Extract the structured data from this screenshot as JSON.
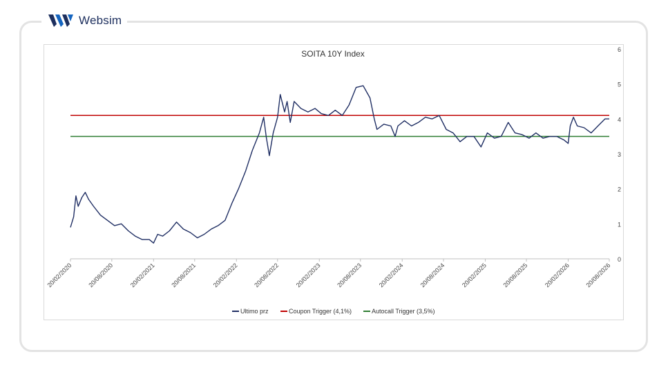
{
  "brand": {
    "name": "Websim"
  },
  "colors": {
    "series": "#1f2e63",
    "coupon": "#c00000",
    "autocall": "#2e7d32",
    "logo_blue": "#1565c0",
    "logo_dark": "#1d2f5e"
  },
  "chart_data": {
    "type": "line",
    "title": "SOITA 10Y Index",
    "xlabel": "",
    "ylabel": "",
    "y_axis_side": "right",
    "ylim": [
      0,
      6
    ],
    "yticks": [
      0,
      1,
      2,
      3,
      4,
      5,
      6
    ],
    "xlim": [
      "2020-02-20",
      "2026-08-20"
    ],
    "xtick_labels": [
      "20/02/2020",
      "20/08/2020",
      "20/02/2021",
      "20/08/2021",
      "20/02/2022",
      "20/08/2022",
      "20/02/2023",
      "20/08/2023",
      "20/02/2024",
      "20/08/2024",
      "20/02/2025",
      "20/08/2025",
      "20/02/2026",
      "20/08/2026"
    ],
    "xticks": [
      "2020-02-20",
      "2020-08-20",
      "2021-02-20",
      "2021-08-20",
      "2022-02-20",
      "2022-08-20",
      "2023-02-20",
      "2023-08-20",
      "2024-02-20",
      "2024-08-20",
      "2025-02-20",
      "2025-08-20",
      "2026-02-20",
      "2026-08-20"
    ],
    "grid": false,
    "legend": "bottom",
    "series": [
      {
        "name": "Ultimo prz",
        "kind": "line",
        "x": [
          "2020-02-20",
          "2020-03-05",
          "2020-03-15",
          "2020-03-25",
          "2020-04-10",
          "2020-04-25",
          "2020-05-10",
          "2020-06-01",
          "2020-07-01",
          "2020-08-01",
          "2020-09-01",
          "2020-10-01",
          "2020-11-01",
          "2020-12-01",
          "2021-01-01",
          "2021-02-01",
          "2021-02-20",
          "2021-03-10",
          "2021-04-01",
          "2021-05-01",
          "2021-06-01",
          "2021-07-01",
          "2021-08-01",
          "2021-09-01",
          "2021-10-01",
          "2021-11-01",
          "2021-12-01",
          "2022-01-01",
          "2022-02-01",
          "2022-03-01",
          "2022-04-01",
          "2022-05-01",
          "2022-06-01",
          "2022-06-20",
          "2022-07-01",
          "2022-07-15",
          "2022-08-01",
          "2022-08-20",
          "2022-09-01",
          "2022-09-20",
          "2022-10-01",
          "2022-10-15",
          "2022-11-01",
          "2022-12-01",
          "2023-01-01",
          "2023-02-01",
          "2023-03-01",
          "2023-04-01",
          "2023-05-01",
          "2023-06-01",
          "2023-07-01",
          "2023-08-01",
          "2023-09-01",
          "2023-10-01",
          "2023-10-20",
          "2023-11-01",
          "2023-12-01",
          "2024-01-01",
          "2024-01-20",
          "2024-02-01",
          "2024-03-01",
          "2024-04-01",
          "2024-05-01",
          "2024-06-01",
          "2024-07-01",
          "2024-08-01",
          "2024-09-01",
          "2024-10-01",
          "2024-11-01",
          "2024-12-01",
          "2025-01-01",
          "2025-02-01",
          "2025-03-01",
          "2025-04-01",
          "2025-05-01",
          "2025-06-01",
          "2025-07-01",
          "2025-08-01",
          "2025-09-01",
          "2025-10-01",
          "2025-11-01",
          "2025-12-01",
          "2026-01-01",
          "2026-02-01",
          "2026-02-20",
          "2026-03-01",
          "2026-03-15",
          "2026-04-01",
          "2026-05-01",
          "2026-06-01",
          "2026-07-01",
          "2026-08-01",
          "2026-08-20"
        ],
        "values": [
          0.9,
          1.2,
          1.8,
          1.5,
          1.75,
          1.9,
          1.7,
          1.5,
          1.25,
          1.1,
          0.95,
          1.0,
          0.8,
          0.65,
          0.55,
          0.55,
          0.45,
          0.7,
          0.65,
          0.8,
          1.05,
          0.85,
          0.75,
          0.6,
          0.7,
          0.85,
          0.95,
          1.1,
          1.6,
          2.0,
          2.5,
          3.1,
          3.6,
          4.05,
          3.5,
          2.95,
          3.6,
          4.05,
          4.7,
          4.2,
          4.5,
          3.9,
          4.5,
          4.3,
          4.2,
          4.3,
          4.15,
          4.1,
          4.25,
          4.1,
          4.4,
          4.9,
          4.95,
          4.6,
          4.0,
          3.7,
          3.85,
          3.8,
          3.5,
          3.8,
          3.95,
          3.8,
          3.9,
          4.05,
          4.0,
          4.1,
          3.7,
          3.6,
          3.35,
          3.5,
          3.5,
          3.2,
          3.6,
          3.45,
          3.5,
          3.9,
          3.6,
          3.55,
          3.45,
          3.6,
          3.45,
          3.5,
          3.5,
          3.4,
          3.3,
          3.8,
          4.05,
          3.8,
          3.75,
          3.6,
          3.8,
          4.0,
          4.0
        ]
      },
      {
        "name": "Coupon Trigger (4,1%)",
        "kind": "hline",
        "value": 4.1
      },
      {
        "name": "Autocall Trigger (3,5%)",
        "kind": "hline",
        "value": 3.5
      }
    ]
  }
}
